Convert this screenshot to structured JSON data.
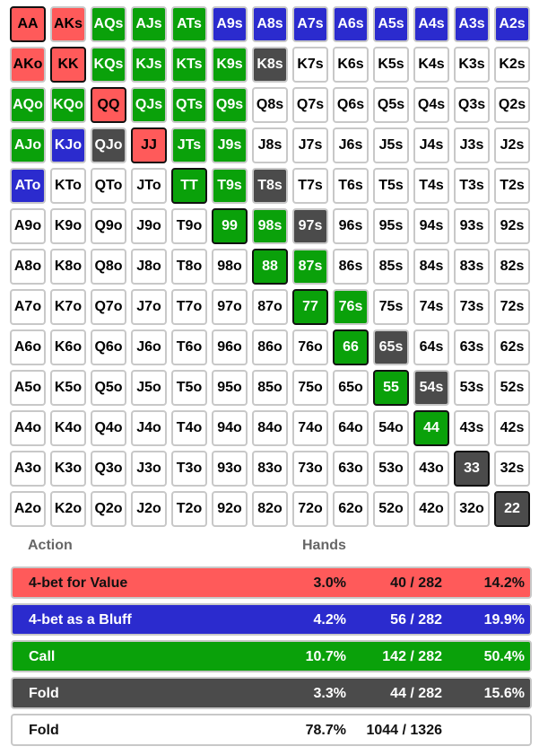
{
  "colors": {
    "value": "#ff5a5a",
    "bluff": "#2b2bce",
    "call": "#0aa10a",
    "fold": "#4b4b4b",
    "none": "#ffffff"
  },
  "grid": {
    "rows": [
      [
        [
          "AA",
          "value"
        ],
        [
          "AKs",
          "value"
        ],
        [
          "AQs",
          "call"
        ],
        [
          "AJs",
          "call"
        ],
        [
          "ATs",
          "call"
        ],
        [
          "A9s",
          "bluff"
        ],
        [
          "A8s",
          "bluff"
        ],
        [
          "A7s",
          "bluff"
        ],
        [
          "A6s",
          "bluff"
        ],
        [
          "A5s",
          "bluff"
        ],
        [
          "A4s",
          "bluff"
        ],
        [
          "A3s",
          "bluff"
        ],
        [
          "A2s",
          "bluff"
        ]
      ],
      [
        [
          "AKo",
          "value"
        ],
        [
          "KK",
          "value"
        ],
        [
          "KQs",
          "call"
        ],
        [
          "KJs",
          "call"
        ],
        [
          "KTs",
          "call"
        ],
        [
          "K9s",
          "call"
        ],
        [
          "K8s",
          "fold"
        ],
        [
          "K7s",
          "none"
        ],
        [
          "K6s",
          "none"
        ],
        [
          "K5s",
          "none"
        ],
        [
          "K4s",
          "none"
        ],
        [
          "K3s",
          "none"
        ],
        [
          "K2s",
          "none"
        ]
      ],
      [
        [
          "AQo",
          "call"
        ],
        [
          "KQo",
          "call"
        ],
        [
          "QQ",
          "value"
        ],
        [
          "QJs",
          "call"
        ],
        [
          "QTs",
          "call"
        ],
        [
          "Q9s",
          "call"
        ],
        [
          "Q8s",
          "none"
        ],
        [
          "Q7s",
          "none"
        ],
        [
          "Q6s",
          "none"
        ],
        [
          "Q5s",
          "none"
        ],
        [
          "Q4s",
          "none"
        ],
        [
          "Q3s",
          "none"
        ],
        [
          "Q2s",
          "none"
        ]
      ],
      [
        [
          "AJo",
          "call"
        ],
        [
          "KJo",
          "bluff"
        ],
        [
          "QJo",
          "fold"
        ],
        [
          "JJ",
          "value"
        ],
        [
          "JTs",
          "call"
        ],
        [
          "J9s",
          "call"
        ],
        [
          "J8s",
          "none"
        ],
        [
          "J7s",
          "none"
        ],
        [
          "J6s",
          "none"
        ],
        [
          "J5s",
          "none"
        ],
        [
          "J4s",
          "none"
        ],
        [
          "J3s",
          "none"
        ],
        [
          "J2s",
          "none"
        ]
      ],
      [
        [
          "ATo",
          "bluff"
        ],
        [
          "KTo",
          "none"
        ],
        [
          "QTo",
          "none"
        ],
        [
          "JTo",
          "none"
        ],
        [
          "TT",
          "call"
        ],
        [
          "T9s",
          "call"
        ],
        [
          "T8s",
          "fold"
        ],
        [
          "T7s",
          "none"
        ],
        [
          "T6s",
          "none"
        ],
        [
          "T5s",
          "none"
        ],
        [
          "T4s",
          "none"
        ],
        [
          "T3s",
          "none"
        ],
        [
          "T2s",
          "none"
        ]
      ],
      [
        [
          "A9o",
          "none"
        ],
        [
          "K9o",
          "none"
        ],
        [
          "Q9o",
          "none"
        ],
        [
          "J9o",
          "none"
        ],
        [
          "T9o",
          "none"
        ],
        [
          "99",
          "call"
        ],
        [
          "98s",
          "call"
        ],
        [
          "97s",
          "fold"
        ],
        [
          "96s",
          "none"
        ],
        [
          "95s",
          "none"
        ],
        [
          "94s",
          "none"
        ],
        [
          "93s",
          "none"
        ],
        [
          "92s",
          "none"
        ]
      ],
      [
        [
          "A8o",
          "none"
        ],
        [
          "K8o",
          "none"
        ],
        [
          "Q8o",
          "none"
        ],
        [
          "J8o",
          "none"
        ],
        [
          "T8o",
          "none"
        ],
        [
          "98o",
          "none"
        ],
        [
          "88",
          "call"
        ],
        [
          "87s",
          "call"
        ],
        [
          "86s",
          "none"
        ],
        [
          "85s",
          "none"
        ],
        [
          "84s",
          "none"
        ],
        [
          "83s",
          "none"
        ],
        [
          "82s",
          "none"
        ]
      ],
      [
        [
          "A7o",
          "none"
        ],
        [
          "K7o",
          "none"
        ],
        [
          "Q7o",
          "none"
        ],
        [
          "J7o",
          "none"
        ],
        [
          "T7o",
          "none"
        ],
        [
          "97o",
          "none"
        ],
        [
          "87o",
          "none"
        ],
        [
          "77",
          "call"
        ],
        [
          "76s",
          "call"
        ],
        [
          "75s",
          "none"
        ],
        [
          "74s",
          "none"
        ],
        [
          "73s",
          "none"
        ],
        [
          "72s",
          "none"
        ]
      ],
      [
        [
          "A6o",
          "none"
        ],
        [
          "K6o",
          "none"
        ],
        [
          "Q6o",
          "none"
        ],
        [
          "J6o",
          "none"
        ],
        [
          "T6o",
          "none"
        ],
        [
          "96o",
          "none"
        ],
        [
          "86o",
          "none"
        ],
        [
          "76o",
          "none"
        ],
        [
          "66",
          "call"
        ],
        [
          "65s",
          "fold"
        ],
        [
          "64s",
          "none"
        ],
        [
          "63s",
          "none"
        ],
        [
          "62s",
          "none"
        ]
      ],
      [
        [
          "A5o",
          "none"
        ],
        [
          "K5o",
          "none"
        ],
        [
          "Q5o",
          "none"
        ],
        [
          "J5o",
          "none"
        ],
        [
          "T5o",
          "none"
        ],
        [
          "95o",
          "none"
        ],
        [
          "85o",
          "none"
        ],
        [
          "75o",
          "none"
        ],
        [
          "65o",
          "none"
        ],
        [
          "55",
          "call"
        ],
        [
          "54s",
          "fold"
        ],
        [
          "53s",
          "none"
        ],
        [
          "52s",
          "none"
        ]
      ],
      [
        [
          "A4o",
          "none"
        ],
        [
          "K4o",
          "none"
        ],
        [
          "Q4o",
          "none"
        ],
        [
          "J4o",
          "none"
        ],
        [
          "T4o",
          "none"
        ],
        [
          "94o",
          "none"
        ],
        [
          "84o",
          "none"
        ],
        [
          "74o",
          "none"
        ],
        [
          "64o",
          "none"
        ],
        [
          "54o",
          "none"
        ],
        [
          "44",
          "call"
        ],
        [
          "43s",
          "none"
        ],
        [
          "42s",
          "none"
        ]
      ],
      [
        [
          "A3o",
          "none"
        ],
        [
          "K3o",
          "none"
        ],
        [
          "Q3o",
          "none"
        ],
        [
          "J3o",
          "none"
        ],
        [
          "T3o",
          "none"
        ],
        [
          "93o",
          "none"
        ],
        [
          "83o",
          "none"
        ],
        [
          "73o",
          "none"
        ],
        [
          "63o",
          "none"
        ],
        [
          "53o",
          "none"
        ],
        [
          "43o",
          "none"
        ],
        [
          "33",
          "fold"
        ],
        [
          "32s",
          "none"
        ]
      ],
      [
        [
          "A2o",
          "none"
        ],
        [
          "K2o",
          "none"
        ],
        [
          "Q2o",
          "none"
        ],
        [
          "J2o",
          "none"
        ],
        [
          "T2o",
          "none"
        ],
        [
          "92o",
          "none"
        ],
        [
          "82o",
          "none"
        ],
        [
          "72o",
          "none"
        ],
        [
          "62o",
          "none"
        ],
        [
          "52o",
          "none"
        ],
        [
          "42o",
          "none"
        ],
        [
          "32o",
          "none"
        ],
        [
          "22",
          "fold"
        ]
      ]
    ]
  },
  "table": {
    "header_action": "Action",
    "header_hands": "Hands",
    "rows": [
      {
        "label": "4-bet for Value",
        "pct": "3.0%",
        "count": "40 / 282",
        "share": "14.2%",
        "kind": "value"
      },
      {
        "label": "4-bet as a Bluff",
        "pct": "4.2%",
        "count": "56 / 282",
        "share": "19.9%",
        "kind": "bluff"
      },
      {
        "label": "Call",
        "pct": "10.7%",
        "count": "142 / 282",
        "share": "50.4%",
        "kind": "call"
      },
      {
        "label": "Fold",
        "pct": "3.3%",
        "count": "44 / 282",
        "share": "15.6%",
        "kind": "fold"
      },
      {
        "label": "Fold",
        "pct": "78.7%",
        "count": "1044 / 1326",
        "share": "",
        "kind": "none"
      }
    ]
  }
}
